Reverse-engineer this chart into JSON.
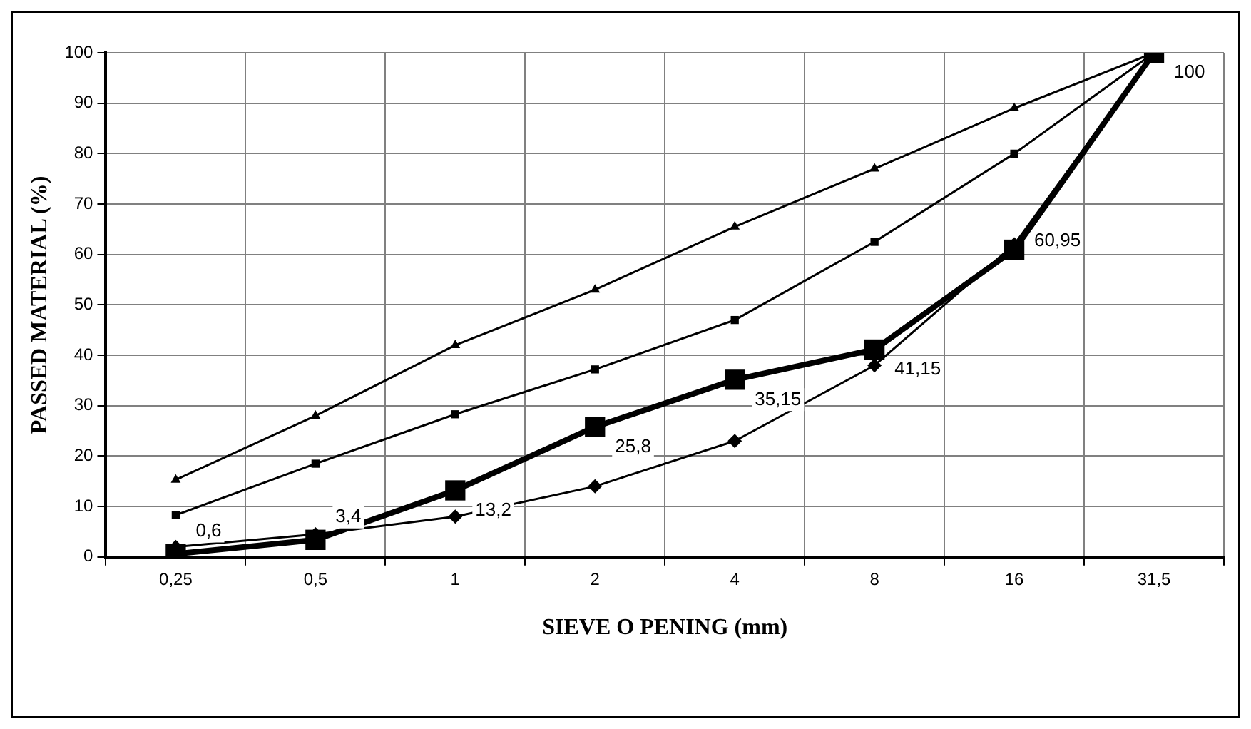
{
  "chart_data": {
    "type": "line",
    "xlabel": "SIEVE O PENING (mm)",
    "ylabel": "PASSED MATERIAL (%)",
    "categories": [
      "0,25",
      "0,5",
      "1",
      "2",
      "4",
      "8",
      "16",
      "31,5"
    ],
    "series": [
      {
        "color": "#000000",
        "marker": "triangle",
        "values": [
          15.3,
          28,
          42,
          53,
          65.5,
          77,
          89,
          100
        ]
      },
      {
        "color": "#000000",
        "marker": "square",
        "values": [
          8.3,
          18.5,
          28.3,
          37.2,
          47,
          62.5,
          80,
          100
        ]
      },
      {
        "color": "#000000",
        "marker": "diamond",
        "values": [
          2,
          4.5,
          8,
          14,
          23,
          38,
          62,
          100
        ]
      },
      {
        "color": "#000000",
        "marker": "square",
        "values": [
          0.6,
          3.4,
          13.2,
          25.8,
          35.15,
          41.15,
          60.95,
          100
        ],
        "value_labels": [
          "0,6",
          "3,4",
          "13,2",
          "25,8",
          "35,15",
          "41,15",
          "60,95",
          "100"
        ]
      }
    ],
    "ylim": [
      0,
      100
    ],
    "yticks": [
      0,
      10,
      20,
      30,
      40,
      50,
      60,
      70,
      80,
      90,
      100
    ],
    "grid": true,
    "legend": false
  }
}
